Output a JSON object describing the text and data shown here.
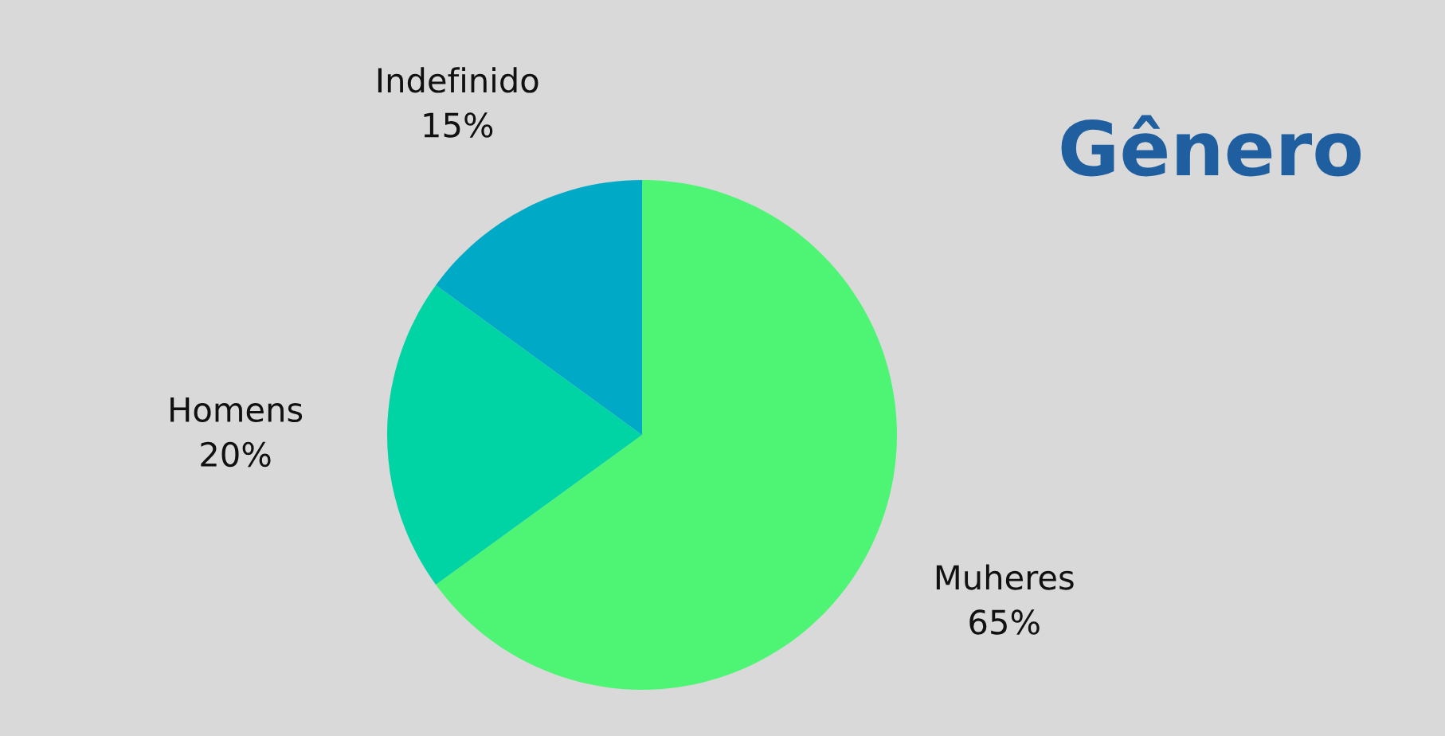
{
  "chart_data": {
    "type": "pie",
    "title": "Gênero",
    "categories": [
      "Muheres",
      "Homens",
      "Indefinido"
    ],
    "values": [
      65,
      20,
      15
    ],
    "value_labels": [
      "65%",
      "20%",
      "15%"
    ],
    "colors": [
      "#4ef574",
      "#00d4a4",
      "#00a9c6"
    ]
  }
}
